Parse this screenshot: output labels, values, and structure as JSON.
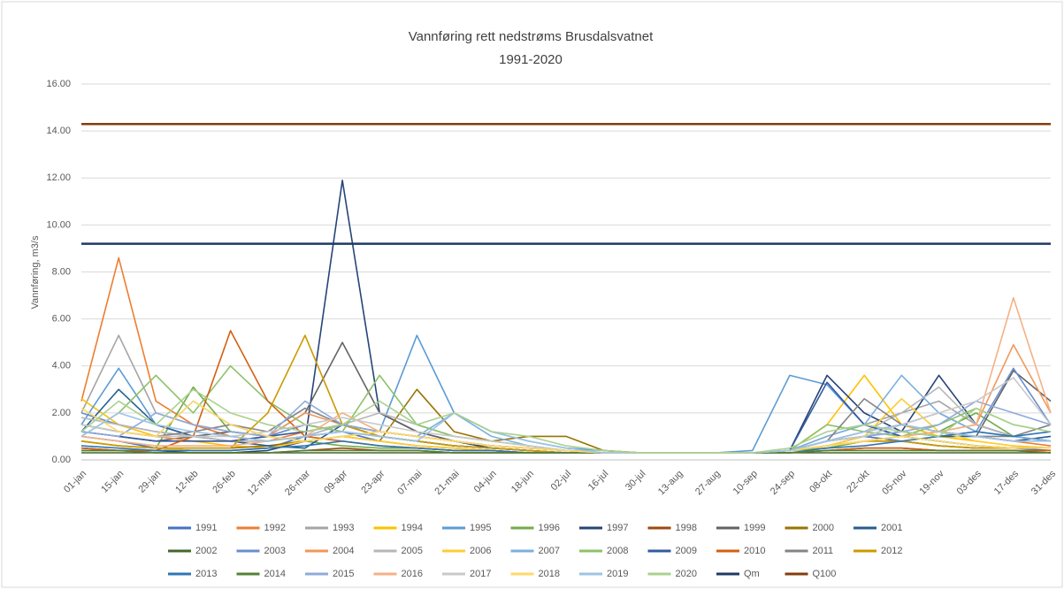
{
  "chart_data": {
    "type": "line",
    "title": "Vannføring rett nedstrøms Brusdalsvatnet",
    "subtitle": "1991-2020",
    "y_label": "Vannføring, m3/s",
    "categories": [
      "01-jan",
      "15-jan",
      "29-jan",
      "12-feb",
      "26-feb",
      "12-mar",
      "26-mar",
      "09-apr",
      "23-apr",
      "07-mai",
      "21-mai",
      "04-jun",
      "18-jun",
      "02-jul",
      "16-jul",
      "30-jul",
      "13-aug",
      "27-aug",
      "10-sep",
      "24-sep",
      "08-okt",
      "22-okt",
      "05-nov",
      "19-nov",
      "03-des",
      "17-des",
      "31-des"
    ],
    "ylim": [
      0,
      16
    ],
    "yticks": [
      {
        "value": 0,
        "label": "0.00"
      },
      {
        "value": 2,
        "label": "2.00"
      },
      {
        "value": 4,
        "label": "4.00"
      },
      {
        "value": 6,
        "label": "6.00"
      },
      {
        "value": 8,
        "label": "8.00"
      },
      {
        "value": 10,
        "label": "10.00"
      },
      {
        "value": 12,
        "label": "12.00"
      },
      {
        "value": 14,
        "label": "14.00"
      },
      {
        "value": 16,
        "label": "16.00"
      }
    ],
    "grid": true,
    "series": [
      {
        "name": "1991",
        "color": "#4472c4",
        "values": [
          1.0,
          0.8,
          0.5,
          0.4,
          0.4,
          0.5,
          1.0,
          1.2,
          0.8,
          0.6,
          0.5,
          0.4,
          0.3,
          0.3,
          0.3,
          0.3,
          0.3,
          0.3,
          0.3,
          0.4,
          0.8,
          1.0,
          0.8,
          0.6,
          0.5,
          0.5,
          0.4
        ]
      },
      {
        "name": "1992",
        "color": "#ed7d31",
        "values": [
          2.5,
          8.6,
          2.5,
          1.5,
          1.0,
          0.8,
          1.2,
          1.5,
          1.0,
          0.8,
          0.6,
          0.5,
          0.4,
          0.3,
          0.3,
          0.3,
          0.3,
          0.3,
          0.3,
          0.4,
          0.6,
          0.8,
          1.0,
          1.2,
          1.0,
          0.8,
          0.6
        ]
      },
      {
        "name": "1993",
        "color": "#a5a5a5",
        "values": [
          2.0,
          5.3,
          2.0,
          1.5,
          1.2,
          1.0,
          1.5,
          1.2,
          1.0,
          0.8,
          0.6,
          0.5,
          0.4,
          0.3,
          0.3,
          0.3,
          0.3,
          0.3,
          0.3,
          0.4,
          1.0,
          1.5,
          2.0,
          2.5,
          1.5,
          1.0,
          0.8
        ]
      },
      {
        "name": "1994",
        "color": "#ffc000",
        "values": [
          2.6,
          1.5,
          1.0,
          0.8,
          0.6,
          0.5,
          0.8,
          1.0,
          0.8,
          0.6,
          0.5,
          0.4,
          0.3,
          0.3,
          0.3,
          0.3,
          0.3,
          0.3,
          0.3,
          0.4,
          1.5,
          3.6,
          1.5,
          1.0,
          0.8,
          0.6,
          0.5
        ]
      },
      {
        "name": "1995",
        "color": "#5b9bd5",
        "values": [
          1.5,
          3.9,
          1.5,
          1.0,
          0.8,
          0.8,
          1.0,
          1.5,
          1.2,
          5.3,
          2.0,
          1.2,
          0.8,
          0.5,
          0.4,
          0.3,
          0.3,
          0.3,
          0.4,
          3.6,
          3.2,
          1.5,
          1.0,
          0.8,
          0.6,
          0.5,
          0.5
        ]
      },
      {
        "name": "1996",
        "color": "#70ad47",
        "values": [
          0.8,
          0.6,
          0.5,
          3.1,
          1.2,
          1.0,
          0.8,
          0.6,
          0.5,
          0.5,
          0.4,
          0.4,
          0.3,
          0.3,
          0.3,
          0.3,
          0.3,
          0.3,
          0.3,
          0.4,
          0.5,
          0.8,
          1.0,
          1.2,
          2.0,
          1.0,
          0.8
        ]
      },
      {
        "name": "1997",
        "color": "#264478",
        "values": [
          0.5,
          0.4,
          0.4,
          0.3,
          0.3,
          0.4,
          0.8,
          11.9,
          2.0,
          1.2,
          0.8,
          0.5,
          0.4,
          0.3,
          0.3,
          0.3,
          0.3,
          0.3,
          0.3,
          0.4,
          3.6,
          2.0,
          1.2,
          3.6,
          1.5,
          1.0,
          0.8
        ]
      },
      {
        "name": "1998",
        "color": "#9e480e",
        "values": [
          0.4,
          0.4,
          0.3,
          0.3,
          0.3,
          0.3,
          0.4,
          0.5,
          0.4,
          0.4,
          0.3,
          0.3,
          0.3,
          0.3,
          0.3,
          0.3,
          0.3,
          0.3,
          0.3,
          0.3,
          0.4,
          0.5,
          0.5,
          0.4,
          0.4,
          0.4,
          0.3
        ]
      },
      {
        "name": "1999",
        "color": "#636363",
        "values": [
          1.2,
          1.0,
          0.8,
          1.0,
          1.2,
          1.0,
          2.0,
          5.0,
          2.0,
          1.2,
          0.8,
          0.6,
          0.5,
          0.4,
          0.3,
          0.3,
          0.3,
          0.3,
          0.3,
          0.4,
          0.8,
          1.2,
          1.5,
          1.2,
          1.0,
          3.8,
          2.5
        ]
      },
      {
        "name": "2000",
        "color": "#997300",
        "values": [
          0.8,
          0.6,
          0.5,
          0.5,
          0.5,
          0.6,
          0.8,
          1.0,
          0.8,
          3.0,
          1.2,
          0.8,
          1.0,
          1.0,
          0.4,
          0.3,
          0.3,
          0.3,
          0.3,
          0.4,
          0.6,
          0.8,
          0.8,
          0.6,
          0.5,
          0.5,
          0.5
        ]
      },
      {
        "name": "2001",
        "color": "#255e91",
        "values": [
          1.2,
          3.0,
          1.5,
          1.0,
          0.8,
          0.6,
          0.5,
          1.5,
          1.0,
          0.8,
          0.6,
          0.5,
          0.4,
          0.3,
          0.3,
          0.3,
          0.3,
          0.3,
          0.3,
          0.4,
          0.8,
          1.0,
          1.2,
          1.0,
          1.0,
          0.8,
          1.0
        ]
      },
      {
        "name": "2002",
        "color": "#43682b",
        "values": [
          0.3,
          0.3,
          0.3,
          0.3,
          0.3,
          0.3,
          0.3,
          0.3,
          0.3,
          0.3,
          0.3,
          0.3,
          0.3,
          0.3,
          0.3,
          0.3,
          0.3,
          0.3,
          0.3,
          0.3,
          0.3,
          0.3,
          0.3,
          0.3,
          0.3,
          0.3,
          0.3
        ]
      },
      {
        "name": "2003",
        "color": "#698ed0",
        "values": [
          2.0,
          1.5,
          1.2,
          1.0,
          0.8,
          1.0,
          1.5,
          1.2,
          1.0,
          0.8,
          0.6,
          0.5,
          0.4,
          0.3,
          0.3,
          0.3,
          0.3,
          0.3,
          0.3,
          0.4,
          0.6,
          1.0,
          1.5,
          2.0,
          1.2,
          3.9,
          1.5
        ]
      },
      {
        "name": "2004",
        "color": "#f1975a",
        "values": [
          1.5,
          1.2,
          1.0,
          0.8,
          0.8,
          1.0,
          2.0,
          1.5,
          1.2,
          1.0,
          0.8,
          0.6,
          0.5,
          0.4,
          0.3,
          0.3,
          0.3,
          0.3,
          0.3,
          0.4,
          0.6,
          0.8,
          1.0,
          1.2,
          1.5,
          4.9,
          2.0
        ]
      },
      {
        "name": "2005",
        "color": "#b7b7b7",
        "values": [
          1.8,
          1.5,
          1.2,
          1.0,
          0.8,
          0.8,
          1.0,
          1.5,
          2.0,
          1.5,
          1.0,
          0.8,
          0.6,
          0.4,
          0.3,
          0.3,
          0.3,
          0.3,
          0.3,
          0.4,
          0.8,
          1.2,
          2.0,
          3.1,
          1.5,
          1.0,
          0.8
        ]
      },
      {
        "name": "2006",
        "color": "#ffcd33",
        "values": [
          0.8,
          0.6,
          0.5,
          0.4,
          0.4,
          0.5,
          0.8,
          1.0,
          0.8,
          0.6,
          0.5,
          0.4,
          0.3,
          0.3,
          0.3,
          0.3,
          0.3,
          0.3,
          0.3,
          0.4,
          0.6,
          1.0,
          2.6,
          1.2,
          0.8,
          0.6,
          0.5
        ]
      },
      {
        "name": "2007",
        "color": "#7cafdd",
        "values": [
          1.5,
          1.2,
          1.0,
          2.5,
          1.5,
          1.0,
          0.8,
          1.0,
          1.2,
          1.0,
          2.0,
          1.0,
          0.6,
          0.4,
          0.3,
          0.3,
          0.3,
          0.3,
          0.3,
          0.4,
          1.0,
          1.5,
          3.6,
          2.0,
          1.2,
          1.0,
          0.8
        ]
      },
      {
        "name": "2008",
        "color": "#8cc168",
        "values": [
          1.0,
          2.0,
          3.6,
          2.0,
          4.0,
          2.5,
          1.5,
          1.2,
          3.6,
          1.5,
          1.0,
          0.8,
          0.6,
          0.4,
          0.3,
          0.3,
          0.3,
          0.3,
          0.3,
          0.4,
          1.5,
          1.2,
          1.0,
          1.5,
          2.2,
          1.5,
          1.2
        ]
      },
      {
        "name": "2009",
        "color": "#335aa1",
        "values": [
          1.2,
          1.0,
          0.8,
          0.8,
          0.8,
          1.0,
          1.2,
          1.5,
          1.2,
          1.0,
          0.8,
          0.6,
          0.5,
          0.4,
          0.3,
          0.3,
          0.3,
          0.3,
          0.3,
          0.4,
          3.3,
          1.5,
          1.0,
          0.8,
          0.6,
          0.5,
          0.5
        ]
      },
      {
        "name": "2010",
        "color": "#d26012",
        "values": [
          0.5,
          0.4,
          0.4,
          1.0,
          5.5,
          2.5,
          1.0,
          0.8,
          0.6,
          0.5,
          0.4,
          0.4,
          0.3,
          0.3,
          0.3,
          0.3,
          0.3,
          0.3,
          0.3,
          0.3,
          0.4,
          0.5,
          0.5,
          0.4,
          0.4,
          0.4,
          0.4
        ]
      },
      {
        "name": "2011",
        "color": "#848484",
        "values": [
          1.5,
          1.2,
          1.0,
          1.2,
          1.5,
          1.2,
          2.2,
          1.5,
          1.2,
          1.0,
          0.8,
          0.6,
          0.5,
          0.4,
          0.3,
          0.3,
          0.3,
          0.3,
          0.3,
          0.4,
          0.8,
          2.6,
          1.5,
          1.2,
          1.0,
          1.0,
          1.5
        ]
      },
      {
        "name": "2012",
        "color": "#cc9a00",
        "values": [
          0.8,
          0.6,
          0.5,
          0.5,
          0.5,
          2.0,
          5.3,
          1.5,
          1.0,
          0.8,
          0.6,
          0.5,
          0.4,
          0.3,
          0.3,
          0.3,
          0.3,
          0.3,
          0.3,
          0.4,
          0.6,
          0.8,
          0.8,
          0.6,
          0.5,
          0.5,
          0.5
        ]
      },
      {
        "name": "2013",
        "color": "#2e75b6",
        "values": [
          0.6,
          0.5,
          0.4,
          0.4,
          0.4,
          0.5,
          0.6,
          0.8,
          0.6,
          0.5,
          0.4,
          0.4,
          0.3,
          0.3,
          0.3,
          0.3,
          0.3,
          0.3,
          0.3,
          0.3,
          0.5,
          0.6,
          0.8,
          1.0,
          1.2,
          1.0,
          1.2
        ]
      },
      {
        "name": "2014",
        "color": "#548235",
        "values": [
          0.4,
          0.4,
          0.3,
          0.3,
          0.3,
          0.3,
          0.4,
          0.4,
          0.4,
          0.4,
          0.3,
          0.3,
          0.3,
          0.3,
          0.3,
          0.3,
          0.3,
          0.3,
          0.3,
          0.3,
          0.4,
          0.4,
          0.4,
          0.4,
          0.4,
          0.4,
          0.3
        ]
      },
      {
        "name": "2015",
        "color": "#8faadc",
        "values": [
          1.2,
          1.0,
          2.0,
          1.5,
          1.2,
          1.0,
          2.5,
          1.5,
          1.2,
          1.0,
          0.8,
          0.6,
          0.5,
          0.4,
          0.3,
          0.3,
          0.3,
          0.3,
          0.3,
          0.4,
          0.8,
          1.0,
          1.2,
          1.5,
          2.5,
          2.0,
          1.5
        ]
      },
      {
        "name": "2016",
        "color": "#f4b183",
        "values": [
          1.0,
          0.8,
          0.6,
          0.6,
          0.6,
          0.8,
          1.0,
          2.0,
          1.2,
          1.0,
          0.8,
          0.6,
          0.5,
          0.4,
          0.3,
          0.3,
          0.3,
          0.3,
          0.3,
          0.4,
          0.6,
          0.8,
          1.0,
          1.2,
          1.5,
          6.9,
          2.0
        ]
      },
      {
        "name": "2017",
        "color": "#c9c9c9",
        "values": [
          1.5,
          1.2,
          1.0,
          1.0,
          1.0,
          1.2,
          1.5,
          1.8,
          1.5,
          1.2,
          1.0,
          0.8,
          0.6,
          0.4,
          0.3,
          0.3,
          0.3,
          0.3,
          0.3,
          0.4,
          0.8,
          1.0,
          1.5,
          2.0,
          2.5,
          3.5,
          1.5
        ]
      },
      {
        "name": "2018",
        "color": "#ffd966",
        "values": [
          2.2,
          1.2,
          1.0,
          2.5,
          1.5,
          1.0,
          0.8,
          1.0,
          1.2,
          1.0,
          0.8,
          0.6,
          0.5,
          0.4,
          0.3,
          0.3,
          0.3,
          0.3,
          0.3,
          0.4,
          0.6,
          0.8,
          1.0,
          0.8,
          0.6,
          0.5,
          0.5
        ]
      },
      {
        "name": "2019",
        "color": "#9dc3e6",
        "values": [
          1.0,
          2.0,
          1.5,
          1.2,
          1.0,
          0.8,
          1.0,
          1.2,
          1.0,
          0.8,
          2.0,
          1.2,
          0.8,
          0.5,
          0.3,
          0.3,
          0.3,
          0.3,
          0.3,
          0.4,
          0.8,
          1.2,
          1.5,
          1.2,
          1.0,
          0.8,
          0.8
        ]
      },
      {
        "name": "2020",
        "color": "#a9d18e",
        "values": [
          1.2,
          2.5,
          1.5,
          3.0,
          2.0,
          1.5,
          1.2,
          1.5,
          2.5,
          1.5,
          2.0,
          1.2,
          1.0,
          0.6,
          0.4,
          0.3,
          0.3,
          0.3,
          0.3,
          0.5,
          1.2,
          1.5,
          1.2,
          1.0,
          2.2,
          1.5,
          1.2
        ]
      },
      {
        "name": "Qm",
        "color": "#1f3864",
        "values": [
          9.2,
          9.2,
          9.2,
          9.2,
          9.2,
          9.2,
          9.2,
          9.2,
          9.2,
          9.2,
          9.2,
          9.2,
          9.2,
          9.2,
          9.2,
          9.2,
          9.2,
          9.2,
          9.2,
          9.2,
          9.2,
          9.2,
          9.2,
          9.2,
          9.2,
          9.2,
          9.2
        ]
      },
      {
        "name": "Q100",
        "color": "#843c0c",
        "values": [
          14.3,
          14.3,
          14.3,
          14.3,
          14.3,
          14.3,
          14.3,
          14.3,
          14.3,
          14.3,
          14.3,
          14.3,
          14.3,
          14.3,
          14.3,
          14.3,
          14.3,
          14.3,
          14.3,
          14.3,
          14.3,
          14.3,
          14.3,
          14.3,
          14.3,
          14.3,
          14.3
        ]
      }
    ]
  }
}
